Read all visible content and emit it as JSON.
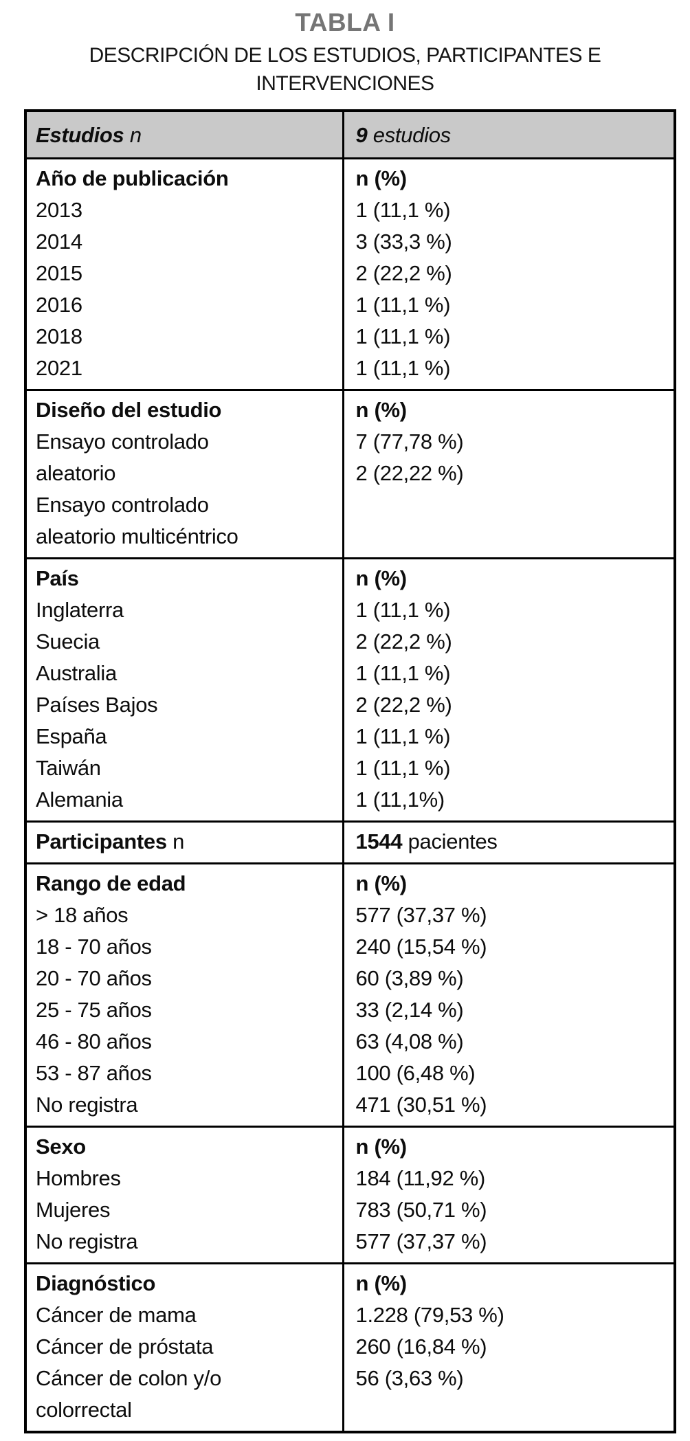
{
  "title": "TABLA I",
  "subtitle": {
    "line1": "DESCRIPCIÓN DE LOS ESTUDIOS, PARTICIPANTES E",
    "line2": "INTERVENCIONES"
  },
  "colors": {
    "title_gray": "#757575",
    "header_bg": "#c9c9c9",
    "border": "#000000",
    "text": "#0d0d0d"
  },
  "table": {
    "header": {
      "left": [
        {
          "t": "Estudios",
          "b": true
        },
        {
          "t": " n",
          "b": false
        }
      ],
      "right": [
        {
          "t": "9",
          "b": true
        },
        {
          "t": " estudios",
          "b": false
        }
      ]
    },
    "sections": [
      {
        "left": [
          [
            {
              "t": "Año de publicación",
              "b": true
            }
          ],
          "2013",
          "2014",
          "2015",
          "2016",
          "2018",
          "2021"
        ],
        "right": [
          [
            {
              "t": "n (%)",
              "b": true
            }
          ],
          "1 (11,1 %)",
          "3 (33,3 %)",
          "2 (22,2 %)",
          "1 (11,1 %)",
          "1 (11,1 %)",
          "1 (11,1 %)"
        ]
      },
      {
        "left": [
          [
            {
              "t": "Diseño del estudio",
              "b": true
            }
          ],
          "Ensayo controlado",
          "aleatorio",
          "Ensayo controlado",
          "aleatorio multicéntrico"
        ],
        "right": [
          [
            {
              "t": "n (%)",
              "b": true
            }
          ],
          "7 (77,78 %)",
          "2 (22,22 %)"
        ]
      },
      {
        "left": [
          [
            {
              "t": "País",
              "b": true
            }
          ],
          "Inglaterra",
          "Suecia",
          "Australia",
          "Países Bajos",
          "España",
          "Taiwán",
          "Alemania"
        ],
        "right": [
          [
            {
              "t": "n (%)",
              "b": true
            }
          ],
          "1 (11,1 %)",
          "2 (22,2 %)",
          "1 (11,1 %)",
          "2 (22,2 %)",
          "1 (11,1 %)",
          "1 (11,1 %)",
          "1 (11,1%)"
        ]
      },
      {
        "left": [
          [
            {
              "t": "Participantes",
              "b": true
            },
            {
              "t": " n",
              "b": false
            }
          ]
        ],
        "right": [
          [
            {
              "t": "1544",
              "b": true
            },
            {
              "t": " pacientes",
              "b": false
            }
          ]
        ]
      },
      {
        "left": [
          [
            {
              "t": "Rango de edad",
              "b": true
            }
          ],
          "> 18 años",
          "18 - 70 años",
          "20 - 70 años",
          "25 - 75 años",
          "46 - 80 años",
          "53 - 87 años",
          "No registra"
        ],
        "right": [
          [
            {
              "t": "n (%)",
              "b": true
            }
          ],
          "577 (37,37 %)",
          "240 (15,54 %)",
          "60 (3,89 %)",
          "33 (2,14 %)",
          "63 (4,08 %)",
          "100 (6,48 %)",
          "471 (30,51 %)"
        ]
      },
      {
        "left": [
          [
            {
              "t": "Sexo",
              "b": true
            }
          ],
          "Hombres",
          "Mujeres",
          "No registra"
        ],
        "right": [
          [
            {
              "t": "n (%)",
              "b": true
            }
          ],
          "184 (11,92 %)",
          "783 (50,71 %)",
          "577 (37,37 %)"
        ]
      },
      {
        "left": [
          [
            {
              "t": "Diagnóstico",
              "b": true
            }
          ],
          "Cáncer de mama",
          "Cáncer de próstata",
          "Cáncer de colon y/o",
          "colorrectal"
        ],
        "right": [
          [
            {
              "t": "n (%)",
              "b": true
            }
          ],
          "1.228 (79,53 %)",
          "260 (16,84 %)",
          "56 (3,63 %)"
        ]
      }
    ]
  }
}
